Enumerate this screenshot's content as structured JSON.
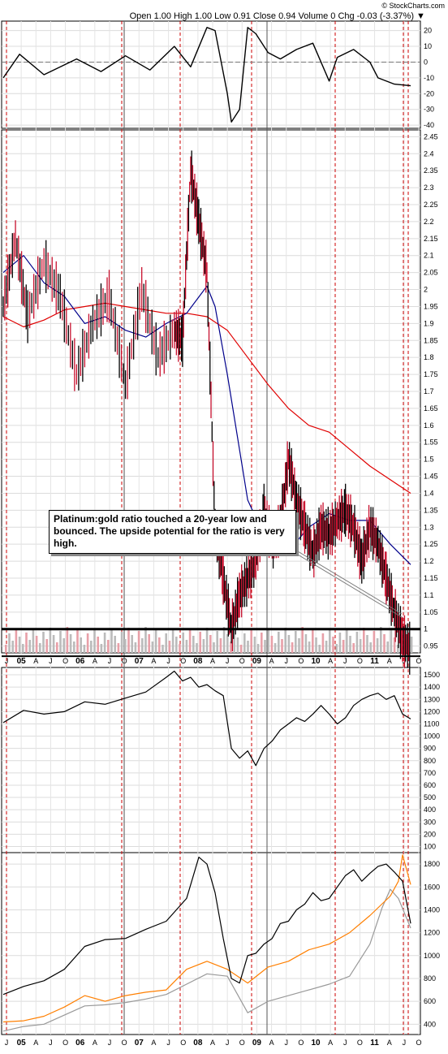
{
  "header": {
    "quote": "Open 1.00  High 1.00  Low 0.91  Close 0.94  Volume 0  Chg -0.03 (-3.37%)",
    "marker": "▼",
    "watermark": "© StockCharts.com"
  },
  "annotation": "Platinum:gold ratio touched a 20-year low and bounced. The upside potential for the ratio is very high.",
  "x_axis_labels": [
    "J",
    "05",
    "A",
    "J",
    "O",
    "06",
    "A",
    "J",
    "O",
    "07",
    "A",
    "J",
    "O",
    "08",
    "A",
    "J",
    "O",
    "09",
    "A",
    "J",
    "O",
    "10",
    "A",
    "J",
    "O",
    "11",
    "A",
    "J",
    "O"
  ],
  "colors": {
    "price": "#000000",
    "down": "#c8102e",
    "ma_short": "#00008b",
    "ma_long": "#e00000",
    "gold_line": "#ff7f00",
    "silver_line": "#999999",
    "guide_red": "#cc0000",
    "guide_gray": "#555555"
  },
  "chart_data": [
    {
      "type": "line",
      "panel": "oscillator",
      "y_ticks": [
        20,
        10,
        0,
        -10,
        -20,
        -30,
        -40
      ],
      "ylim": [
        -42,
        26
      ],
      "series": [
        {
          "x": [
            0,
            0.04,
            0.1,
            0.18,
            0.24,
            0.3,
            0.36,
            0.42,
            0.46,
            0.5,
            0.52,
            0.55,
            0.56,
            0.58,
            0.6,
            0.62,
            0.65,
            0.68,
            0.72,
            0.76,
            0.8,
            0.82,
            0.86,
            0.9,
            0.92,
            0.96,
            1.0
          ],
          "values": [
            -10,
            5,
            -8,
            2,
            -6,
            4,
            -5,
            10,
            -3,
            22,
            20,
            -20,
            -38,
            -30,
            22,
            18,
            6,
            2,
            8,
            12,
            -12,
            3,
            8,
            0,
            -10,
            -14,
            -15
          ]
        }
      ]
    },
    {
      "type": "line",
      "panel": "ratio",
      "title": "",
      "y_ticks": [
        0.95,
        1.0,
        1.05,
        1.1,
        1.15,
        1.2,
        1.25,
        1.3,
        1.35,
        1.4,
        1.45,
        1.5,
        1.55,
        1.6,
        1.65,
        1.7,
        1.75,
        1.8,
        1.85,
        1.9,
        1.95,
        2.0,
        2.05,
        2.1,
        2.15,
        2.2,
        2.25,
        2.3,
        2.35,
        2.4,
        2.45
      ],
      "ylim": [
        0.93,
        2.47
      ],
      "reference_line": 1.0,
      "series": [
        {
          "x": [
            0,
            0.03,
            0.06,
            0.1,
            0.14,
            0.18,
            0.22,
            0.26,
            0.3,
            0.34,
            0.38,
            0.42,
            0.44,
            0.46,
            0.48,
            0.5,
            0.52,
            0.54,
            0.56,
            0.58,
            0.6,
            0.62,
            0.64,
            0.66,
            0.68,
            0.7,
            0.72,
            0.74,
            0.76,
            0.78,
            0.8,
            0.82,
            0.84,
            0.86,
            0.88,
            0.9,
            0.92,
            0.94,
            0.96,
            0.98,
            1.0
          ],
          "values": [
            1.95,
            2.15,
            1.92,
            2.08,
            1.98,
            1.75,
            1.9,
            1.98,
            1.72,
            2.0,
            1.8,
            1.88,
            1.85,
            2.35,
            2.2,
            2.05,
            1.3,
            1.15,
            1.0,
            1.1,
            1.15,
            1.2,
            1.35,
            1.25,
            1.3,
            1.5,
            1.38,
            1.3,
            1.22,
            1.3,
            1.28,
            1.32,
            1.35,
            1.3,
            1.2,
            1.3,
            1.25,
            1.15,
            1.05,
            0.97,
            0.94
          ]
        },
        {
          "x": [
            0,
            0.05,
            0.1,
            0.15,
            0.2,
            0.25,
            0.3,
            0.35,
            0.4,
            0.45,
            0.5,
            0.52,
            0.55,
            0.6,
            0.65,
            0.7,
            0.75,
            0.8,
            0.85,
            0.9,
            0.95,
            1.0
          ],
          "values": [
            2.05,
            2.1,
            2.02,
            1.98,
            1.9,
            1.92,
            1.88,
            1.86,
            1.9,
            1.93,
            2.01,
            1.95,
            1.75,
            1.38,
            1.25,
            1.23,
            1.3,
            1.34,
            1.32,
            1.32,
            1.25,
            1.19
          ]
        },
        {
          "x": [
            0,
            0.05,
            0.1,
            0.15,
            0.2,
            0.25,
            0.3,
            0.35,
            0.4,
            0.45,
            0.5,
            0.55,
            0.6,
            0.65,
            0.7,
            0.75,
            0.8,
            0.85,
            0.9,
            0.95,
            1.0
          ],
          "values": [
            1.92,
            1.89,
            1.91,
            1.94,
            1.95,
            1.96,
            1.95,
            1.94,
            1.93,
            1.93,
            1.92,
            1.88,
            1.8,
            1.72,
            1.65,
            1.6,
            1.58,
            1.53,
            1.48,
            1.44,
            1.4
          ]
        }
      ]
    },
    {
      "type": "line",
      "panel": "index",
      "y_ticks": [
        1500,
        1400,
        1300,
        1200,
        1100,
        1000,
        900,
        800,
        700,
        600,
        500,
        400,
        300,
        200,
        100
      ],
      "ylim": [
        50,
        1560
      ],
      "series": [
        {
          "x": [
            0,
            0.05,
            0.1,
            0.15,
            0.2,
            0.25,
            0.3,
            0.35,
            0.4,
            0.42,
            0.44,
            0.46,
            0.48,
            0.5,
            0.52,
            0.54,
            0.56,
            0.58,
            0.6,
            0.62,
            0.64,
            0.66,
            0.68,
            0.7,
            0.72,
            0.74,
            0.76,
            0.78,
            0.8,
            0.82,
            0.84,
            0.86,
            0.88,
            0.9,
            0.92,
            0.94,
            0.96,
            0.98,
            1.0
          ],
          "values": [
            1110,
            1210,
            1180,
            1200,
            1280,
            1260,
            1310,
            1360,
            1480,
            1530,
            1450,
            1480,
            1400,
            1420,
            1370,
            1330,
            900,
            820,
            880,
            760,
            900,
            960,
            1050,
            1100,
            1150,
            1120,
            1180,
            1250,
            1180,
            1100,
            1150,
            1250,
            1300,
            1330,
            1350,
            1300,
            1330,
            1180,
            1140
          ]
        }
      ]
    },
    {
      "type": "line",
      "panel": "metals",
      "y_ticks": [
        1800,
        1600,
        1400,
        1200,
        1000,
        800,
        600,
        400
      ],
      "ylim": [
        310,
        1900
      ],
      "series": [
        {
          "x": [
            0,
            0.05,
            0.1,
            0.15,
            0.2,
            0.25,
            0.3,
            0.35,
            0.4,
            0.45,
            0.48,
            0.5,
            0.52,
            0.54,
            0.56,
            0.58,
            0.6,
            0.62,
            0.64,
            0.66,
            0.68,
            0.7,
            0.72,
            0.74,
            0.76,
            0.78,
            0.8,
            0.82,
            0.84,
            0.86,
            0.88,
            0.9,
            0.92,
            0.94,
            0.96,
            0.98,
            1.0
          ],
          "values": [
            660,
            730,
            780,
            880,
            1080,
            1140,
            1150,
            1230,
            1300,
            1500,
            1860,
            1800,
            1550,
            1150,
            800,
            760,
            1000,
            1020,
            1100,
            1150,
            1280,
            1300,
            1400,
            1450,
            1550,
            1480,
            1500,
            1600,
            1700,
            1750,
            1650,
            1720,
            1780,
            1800,
            1730,
            1650,
            1280
          ]
        },
        {
          "x": [
            0,
            0.05,
            0.1,
            0.15,
            0.2,
            0.25,
            0.3,
            0.35,
            0.4,
            0.45,
            0.5,
            0.55,
            0.6,
            0.65,
            0.7,
            0.75,
            0.8,
            0.85,
            0.9,
            0.95,
            0.97,
            0.98,
            1.0
          ],
          "values": [
            420,
            430,
            470,
            550,
            650,
            600,
            650,
            680,
            700,
            880,
            950,
            880,
            760,
            900,
            950,
            1050,
            1100,
            1200,
            1350,
            1520,
            1650,
            1880,
            1620
          ]
        },
        {
          "x": [
            0,
            0.05,
            0.1,
            0.15,
            0.2,
            0.25,
            0.3,
            0.35,
            0.4,
            0.45,
            0.5,
            0.55,
            0.6,
            0.65,
            0.7,
            0.75,
            0.8,
            0.85,
            0.9,
            0.93,
            0.95,
            0.97,
            1.0
          ],
          "values": [
            340,
            380,
            400,
            480,
            560,
            570,
            590,
            620,
            660,
            750,
            840,
            820,
            500,
            600,
            650,
            700,
            750,
            820,
            1100,
            1420,
            1580,
            1500,
            1240
          ]
        }
      ]
    }
  ]
}
